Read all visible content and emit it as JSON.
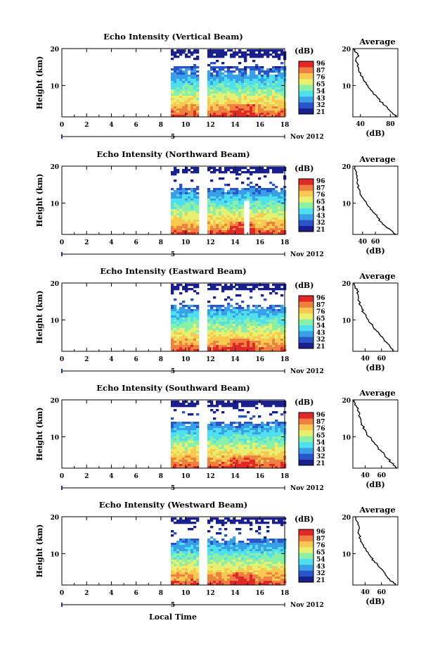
{
  "chart_data": {
    "type": "heatmap",
    "x_axis": {
      "label": "Local Time",
      "range": [
        0,
        18
      ],
      "ticks": [
        0,
        2,
        4,
        6,
        8,
        10,
        12,
        14,
        16,
        18
      ],
      "tick_labels": [
        "0",
        "2",
        "4",
        "6",
        "8",
        "10",
        "12",
        "14",
        "16",
        "18"
      ]
    },
    "y_axis": {
      "label": "Height (km)",
      "range": [
        1.5,
        20
      ],
      "ticks": [
        10,
        20
      ],
      "tick_labels": [
        "10",
        "20"
      ]
    },
    "colorbar": {
      "label": "(dB)",
      "range": [
        21,
        96
      ],
      "tick_labels": [
        "96",
        "87",
        "76",
        "65",
        "54",
        "43",
        "32",
        "21"
      ],
      "colors": [
        "#1a1f8e",
        "#2a55c8",
        "#39a0e8",
        "#4fe0f0",
        "#8af0a8",
        "#e8f070",
        "#f8c850",
        "#f08040",
        "#e02828"
      ]
    },
    "date_label": "Nov 2012",
    "date_marker": "5",
    "data_start_hour": 8.8,
    "data_gap_hours": [
      11.2,
      11.6
    ],
    "average_panel": {
      "title": "Average",
      "xlabel": "(dB)",
      "y_tick_labels": [
        "10",
        "20"
      ]
    },
    "panels": [
      {
        "title": "Echo Intensity (Vertical Beam)",
        "avg_xlim": [
          30,
          90
        ],
        "avg_tick_labels": [
          "40",
          "80"
        ],
        "avg_ticks": [
          40,
          80
        ],
        "average_profile": [
          [
            1.5,
            88
          ],
          [
            2,
            86
          ],
          [
            3,
            80
          ],
          [
            4,
            76
          ],
          [
            5,
            70
          ],
          [
            6,
            66
          ],
          [
            7,
            62
          ],
          [
            8,
            57
          ],
          [
            9,
            53
          ],
          [
            10,
            50
          ],
          [
            11,
            46
          ],
          [
            12,
            43
          ],
          [
            13,
            40
          ],
          [
            14,
            38
          ],
          [
            15,
            37
          ],
          [
            16,
            36
          ],
          [
            17,
            34
          ],
          [
            18,
            38
          ],
          [
            19,
            34
          ],
          [
            19.5,
            32
          ],
          [
            20,
            31
          ]
        ]
      },
      {
        "title": "Echo Intensity (Northward Beam)",
        "avg_xlim": [
          25,
          95
        ],
        "avg_tick_labels": [
          "40",
          "60"
        ],
        "avg_ticks": [
          40,
          60
        ],
        "average_profile": [
          [
            1.5,
            92
          ],
          [
            2,
            88
          ],
          [
            3,
            82
          ],
          [
            4,
            74
          ],
          [
            5,
            68
          ],
          [
            6,
            64
          ],
          [
            7,
            60
          ],
          [
            8,
            55
          ],
          [
            9,
            50
          ],
          [
            10,
            46
          ],
          [
            11,
            42
          ],
          [
            12,
            38
          ],
          [
            13,
            36
          ],
          [
            14,
            34
          ],
          [
            15,
            33
          ],
          [
            16,
            32
          ],
          [
            17,
            31
          ],
          [
            18,
            30
          ],
          [
            19,
            29
          ],
          [
            20,
            28
          ]
        ]
      },
      {
        "title": "Echo Intensity (Eastward Beam)",
        "avg_xlim": [
          25,
          80
        ],
        "avg_tick_labels": [
          "40",
          "60"
        ],
        "avg_ticks": [
          40,
          60
        ],
        "average_profile": [
          [
            1.5,
            75
          ],
          [
            2,
            74
          ],
          [
            3,
            70
          ],
          [
            4,
            66
          ],
          [
            5,
            62
          ],
          [
            6,
            58
          ],
          [
            7,
            54
          ],
          [
            8,
            50
          ],
          [
            9,
            47
          ],
          [
            10,
            44
          ],
          [
            11,
            41
          ],
          [
            12,
            38
          ],
          [
            13,
            36
          ],
          [
            14,
            34
          ],
          [
            15,
            33
          ],
          [
            16,
            32
          ],
          [
            17,
            31
          ],
          [
            18,
            30
          ],
          [
            19,
            28
          ],
          [
            20,
            27
          ]
        ]
      },
      {
        "title": "Echo Intensity (Southward Beam)",
        "avg_xlim": [
          25,
          80
        ],
        "avg_tick_labels": [
          "40",
          "60"
        ],
        "avg_ticks": [
          40,
          60
        ],
        "average_profile": [
          [
            1.5,
            79
          ],
          [
            2,
            77
          ],
          [
            3,
            72
          ],
          [
            4,
            68
          ],
          [
            5,
            64
          ],
          [
            6,
            60
          ],
          [
            7,
            56
          ],
          [
            8,
            52
          ],
          [
            9,
            48
          ],
          [
            10,
            45
          ],
          [
            11,
            42
          ],
          [
            12,
            39
          ],
          [
            13,
            37
          ],
          [
            14,
            35
          ],
          [
            15,
            34
          ],
          [
            16,
            33
          ],
          [
            17,
            31
          ],
          [
            18,
            30
          ],
          [
            19,
            28
          ],
          [
            20,
            27
          ]
        ]
      },
      {
        "title": "Echo Intensity (Westward Beam)",
        "avg_xlim": [
          25,
          80
        ],
        "avg_tick_labels": [
          "40",
          "60"
        ],
        "avg_ticks": [
          40,
          60
        ],
        "average_profile": [
          [
            1.5,
            77
          ],
          [
            2,
            75
          ],
          [
            3,
            70
          ],
          [
            4,
            66
          ],
          [
            5,
            63
          ],
          [
            6,
            59
          ],
          [
            7,
            55
          ],
          [
            8,
            51
          ],
          [
            9,
            47
          ],
          [
            10,
            44
          ],
          [
            11,
            41
          ],
          [
            12,
            38
          ],
          [
            13,
            36
          ],
          [
            14,
            34
          ],
          [
            15,
            33
          ],
          [
            16,
            32
          ],
          [
            17,
            33
          ],
          [
            18,
            31
          ],
          [
            19,
            29
          ],
          [
            20,
            28
          ]
        ]
      }
    ]
  }
}
